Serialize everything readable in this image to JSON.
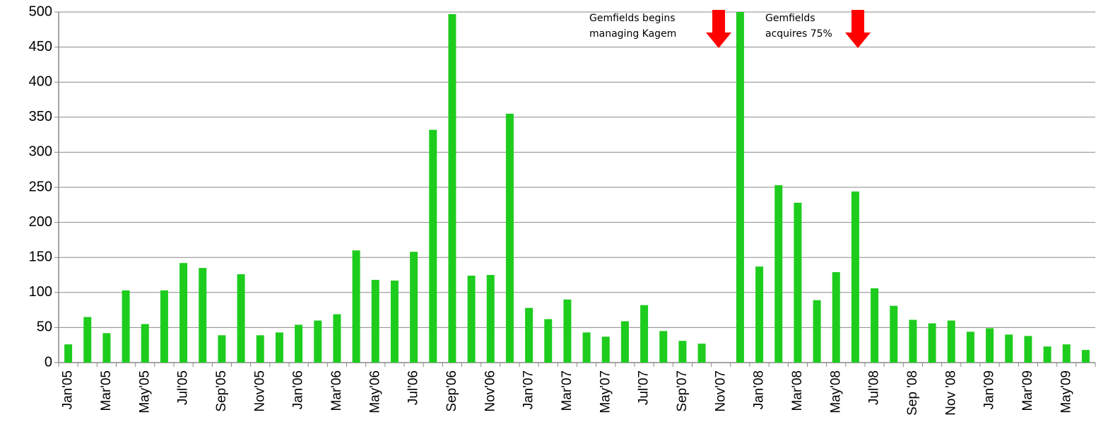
{
  "chart_data": {
    "type": "bar",
    "categories": [
      "Jan'05",
      null,
      "Mar'05",
      null,
      "May'05",
      null,
      "Jul'05",
      null,
      "Sep'05",
      null,
      "Nov'05",
      null,
      "Jan'06",
      null,
      "Mar'06",
      null,
      "May'06",
      null,
      "Jul'06",
      null,
      "Sep'06",
      null,
      "Nov'06",
      null,
      "Jan'07",
      null,
      "Mar'07",
      null,
      "May'07",
      null,
      "Jul'07",
      null,
      "Sep'07",
      null,
      "Nov'07",
      null,
      "Jan'08",
      null,
      "Mar'08",
      null,
      "May'08",
      null,
      "Jul'08",
      null,
      "Sep '08",
      null,
      "Nov '08",
      null,
      "Jan'09",
      null,
      "Mar'09",
      null,
      "May'09",
      null
    ],
    "values": [
      26,
      65,
      42,
      103,
      55,
      103,
      142,
      135,
      39,
      126,
      39,
      43,
      54,
      60,
      69,
      160,
      118,
      117,
      158,
      332,
      497,
      124,
      125,
      355,
      78,
      62,
      90,
      43,
      37,
      59,
      82,
      45,
      31,
      27,
      null,
      500,
      137,
      253,
      228,
      89,
      129,
      244,
      106,
      81,
      61,
      56,
      60,
      44,
      49,
      40,
      38,
      23,
      26,
      18
    ],
    "color": "#1ecc1e",
    "ylim": [
      0,
      500
    ],
    "yticks": [
      0,
      50,
      100,
      150,
      200,
      250,
      300,
      350,
      400,
      450,
      500
    ],
    "grid": true,
    "annotations": [
      {
        "lines": [
          "Gemfields begins",
          "managing Kagem"
        ],
        "color": "#ff0000"
      },
      {
        "lines": [
          "Gemfields",
          "acquires 75%"
        ],
        "color": "#ff0000"
      }
    ]
  }
}
